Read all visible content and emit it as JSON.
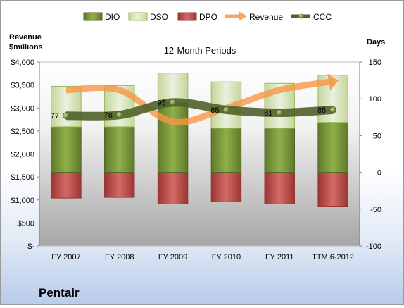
{
  "company": "Pentair",
  "chart_data": {
    "type": "bar",
    "title": "12-Month Periods",
    "categories": [
      "FY 2007",
      "FY 2008",
      "FY 2009",
      "FY 2010",
      "FY 2011",
      "TTM 6-2012"
    ],
    "left_axis": {
      "label_line1": "Revenue",
      "label_line2": "$millions",
      "ylim": [
        0,
        4000
      ],
      "ticks": [
        0,
        500,
        1000,
        1500,
        2000,
        2500,
        3000,
        3500,
        4000
      ],
      "tick_labels": [
        "$-",
        "$500",
        "$1,000",
        "$1,500",
        "$2,000",
        "$2,500",
        "$3,000",
        "$3,500",
        "$4,000"
      ]
    },
    "right_axis": {
      "label": "Days",
      "ylim": [
        -100,
        150
      ],
      "ticks": [
        -100,
        -50,
        0,
        50,
        100,
        150
      ],
      "tick_labels": [
        "-100",
        "-50",
        "0",
        "50",
        "100",
        "150"
      ]
    },
    "series": [
      {
        "name": "DIO",
        "axis": "right",
        "kind": "stacked-bar",
        "color": "#77933c",
        "values": [
          62,
          62,
          95,
          60,
          60,
          68
        ]
      },
      {
        "name": "DSO",
        "axis": "right",
        "kind": "stacked-bar",
        "color": "#d7e4bd",
        "values": [
          55,
          56,
          40,
          63,
          61,
          64
        ]
      },
      {
        "name": "DPO",
        "axis": "right",
        "kind": "stacked-bar-negative",
        "color": "#c0504d",
        "values": [
          -35,
          -34,
          -43,
          -40,
          -43,
          -46
        ]
      },
      {
        "name": "Revenue",
        "axis": "left",
        "kind": "arrow-line",
        "color": "#f79646",
        "values": [
          3390,
          3390,
          2700,
          3000,
          3390,
          3580
        ]
      },
      {
        "name": "CCC",
        "axis": "right",
        "kind": "line-markers",
        "color": "#4f6228",
        "values": [
          77,
          78,
          95,
          85,
          81,
          85
        ],
        "labels": [
          "77",
          "78",
          "95",
          "85",
          "81",
          "85"
        ]
      }
    ],
    "legend_position": "top",
    "grid": false
  }
}
